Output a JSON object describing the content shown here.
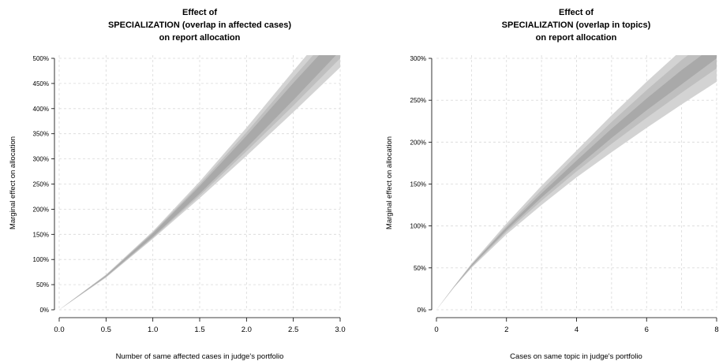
{
  "chart_data": [
    {
      "type": "area",
      "title_lines": [
        "Effect of",
        "SPECIALIZATION (overlap in affected cases)",
        "on report allocation"
      ],
      "xlabel": "Number of same affected cases in judge's portfolio",
      "ylabel": "Marginal effect on allocation",
      "xlim": [
        0,
        3
      ],
      "ylim": [
        0,
        5
      ],
      "x_ticks": [
        0,
        0.5,
        1,
        1.5,
        2,
        2.5,
        3
      ],
      "x_tick_labels": [
        "0.0",
        "0.5",
        "1.0",
        "1.5",
        "2.0",
        "2.5",
        "3.0"
      ],
      "y_ticks": [
        0,
        0.5,
        1,
        1.5,
        2,
        2.5,
        3,
        3.5,
        4,
        4.5,
        5
      ],
      "y_tick_labels": [
        "0%",
        "50%",
        "100%",
        "150%",
        "200%",
        "250%",
        "300%",
        "350%",
        "400%",
        "450%",
        "500%"
      ],
      "grid": true,
      "bands": [
        {
          "x": [
            0,
            0.5,
            1,
            1.5,
            2,
            2.5,
            3
          ],
          "lower": [
            0,
            0.64,
            1.41,
            2.22,
            3.06,
            3.93,
            4.82
          ],
          "upper": [
            0,
            0.7,
            1.56,
            2.55,
            3.62,
            4.75,
            5.85
          ],
          "color": "#d3d3d3"
        },
        {
          "x": [
            0,
            0.5,
            1,
            1.5,
            2,
            2.5,
            3
          ],
          "lower": [
            0,
            0.65,
            1.43,
            2.27,
            3.15,
            4.06,
            5.0
          ],
          "upper": [
            0,
            0.69,
            1.54,
            2.5,
            3.53,
            4.62,
            5.67
          ],
          "color": "#bfbfbf"
        },
        {
          "x": [
            0,
            0.5,
            1,
            1.5,
            2,
            2.5,
            3
          ],
          "lower": [
            0,
            0.66,
            1.45,
            2.31,
            3.22,
            4.17,
            5.15
          ],
          "upper": [
            0,
            0.68,
            1.52,
            2.46,
            3.46,
            4.51,
            5.52
          ],
          "color": "#a9a9a9"
        }
      ]
    },
    {
      "type": "area",
      "title_lines": [
        "Effect of",
        "SPECIALIZATION (overlap in topics)",
        "on report allocation"
      ],
      "xlabel": "Cases on same topic in judge's portfolio",
      "ylabel": "Marginal effect on allocation",
      "xlim": [
        0,
        8
      ],
      "ylim": [
        0,
        3
      ],
      "x_ticks": [
        0,
        2,
        4,
        6,
        8
      ],
      "x_tick_labels": [
        "0",
        "2",
        "4",
        "6",
        "8"
      ],
      "x_grid": [
        1,
        2,
        3,
        4,
        5,
        6,
        7,
        8
      ],
      "y_ticks": [
        0,
        0.5,
        1,
        1.5,
        2,
        2.5,
        3
      ],
      "y_tick_labels": [
        "0%",
        "50%",
        "100%",
        "150%",
        "200%",
        "250%",
        "300%"
      ],
      "grid": true,
      "bands": [
        {
          "x": [
            0,
            0.5,
            1,
            2,
            3,
            4,
            5,
            6,
            7,
            8
          ],
          "lower": [
            0,
            0.265,
            0.5,
            0.9,
            1.25,
            1.58,
            1.88,
            2.17,
            2.45,
            2.72
          ],
          "upper": [
            0,
            0.28,
            0.55,
            1.03,
            1.48,
            1.9,
            2.32,
            2.72,
            3.1,
            3.45
          ],
          "color": "#d3d3d3"
        },
        {
          "x": [
            0,
            0.5,
            1,
            2,
            3,
            4,
            5,
            6,
            7,
            8
          ],
          "lower": [
            0,
            0.268,
            0.51,
            0.93,
            1.3,
            1.65,
            1.98,
            2.29,
            2.59,
            2.88
          ],
          "upper": [
            0,
            0.277,
            0.54,
            1.0,
            1.43,
            1.84,
            2.24,
            2.62,
            2.98,
            3.3
          ],
          "color": "#bfbfbf"
        },
        {
          "x": [
            0,
            0.5,
            1,
            2,
            3,
            4,
            5,
            6,
            7,
            8
          ],
          "lower": [
            0,
            0.27,
            0.52,
            0.95,
            1.34,
            1.7,
            2.05,
            2.38,
            2.69,
            3.0
          ],
          "upper": [
            0,
            0.275,
            0.535,
            0.98,
            1.39,
            1.78,
            2.16,
            2.52,
            2.86,
            3.17
          ],
          "color": "#a9a9a9"
        }
      ]
    }
  ]
}
